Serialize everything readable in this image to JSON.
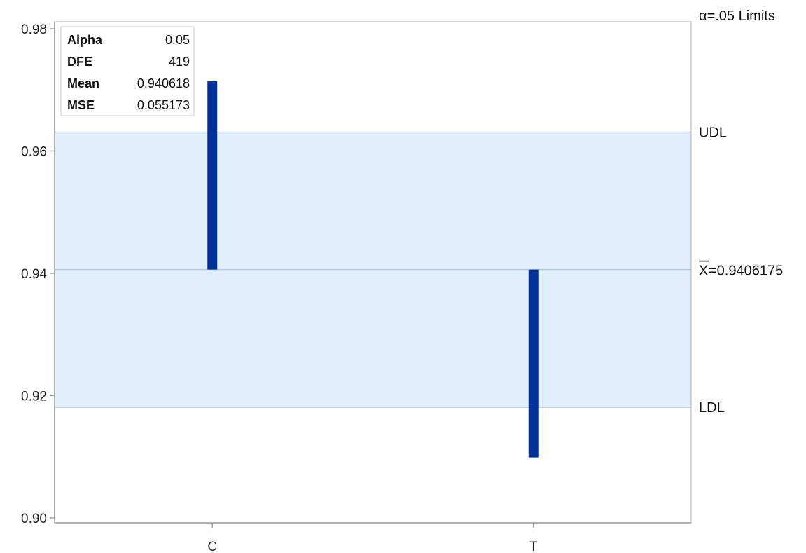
{
  "chart_data": {
    "type": "bar",
    "chart_kind": "analysis of means (ANOM) decision chart",
    "categories": [
      "C",
      "T"
    ],
    "values": [
      0.9714,
      0.9099
    ],
    "center_line": 0.9406175,
    "center_label": "=0.9406175",
    "center_symbol": "X",
    "upper_limit": 0.9631,
    "lower_limit": 0.9181,
    "limits_title": "α=.05 Limits",
    "upper_label": "UDL",
    "lower_label": "LDL",
    "ylim": [
      0.9,
      0.98
    ],
    "yticks": [
      "0.90",
      "0.92",
      "0.94",
      "0.96",
      "0.98"
    ],
    "stats": [
      {
        "label": "Alpha",
        "value": "0.05"
      },
      {
        "label": "DFE",
        "value": "419"
      },
      {
        "label": "Mean",
        "value": "0.940618"
      },
      {
        "label": "MSE",
        "value": "0.055173"
      }
    ],
    "colors": {
      "bar": "#00329b",
      "band": "#e1eefc",
      "limit_line": "#b4c8dc",
      "axis": "#9aa0a6"
    },
    "grid": false,
    "legend": "none"
  }
}
